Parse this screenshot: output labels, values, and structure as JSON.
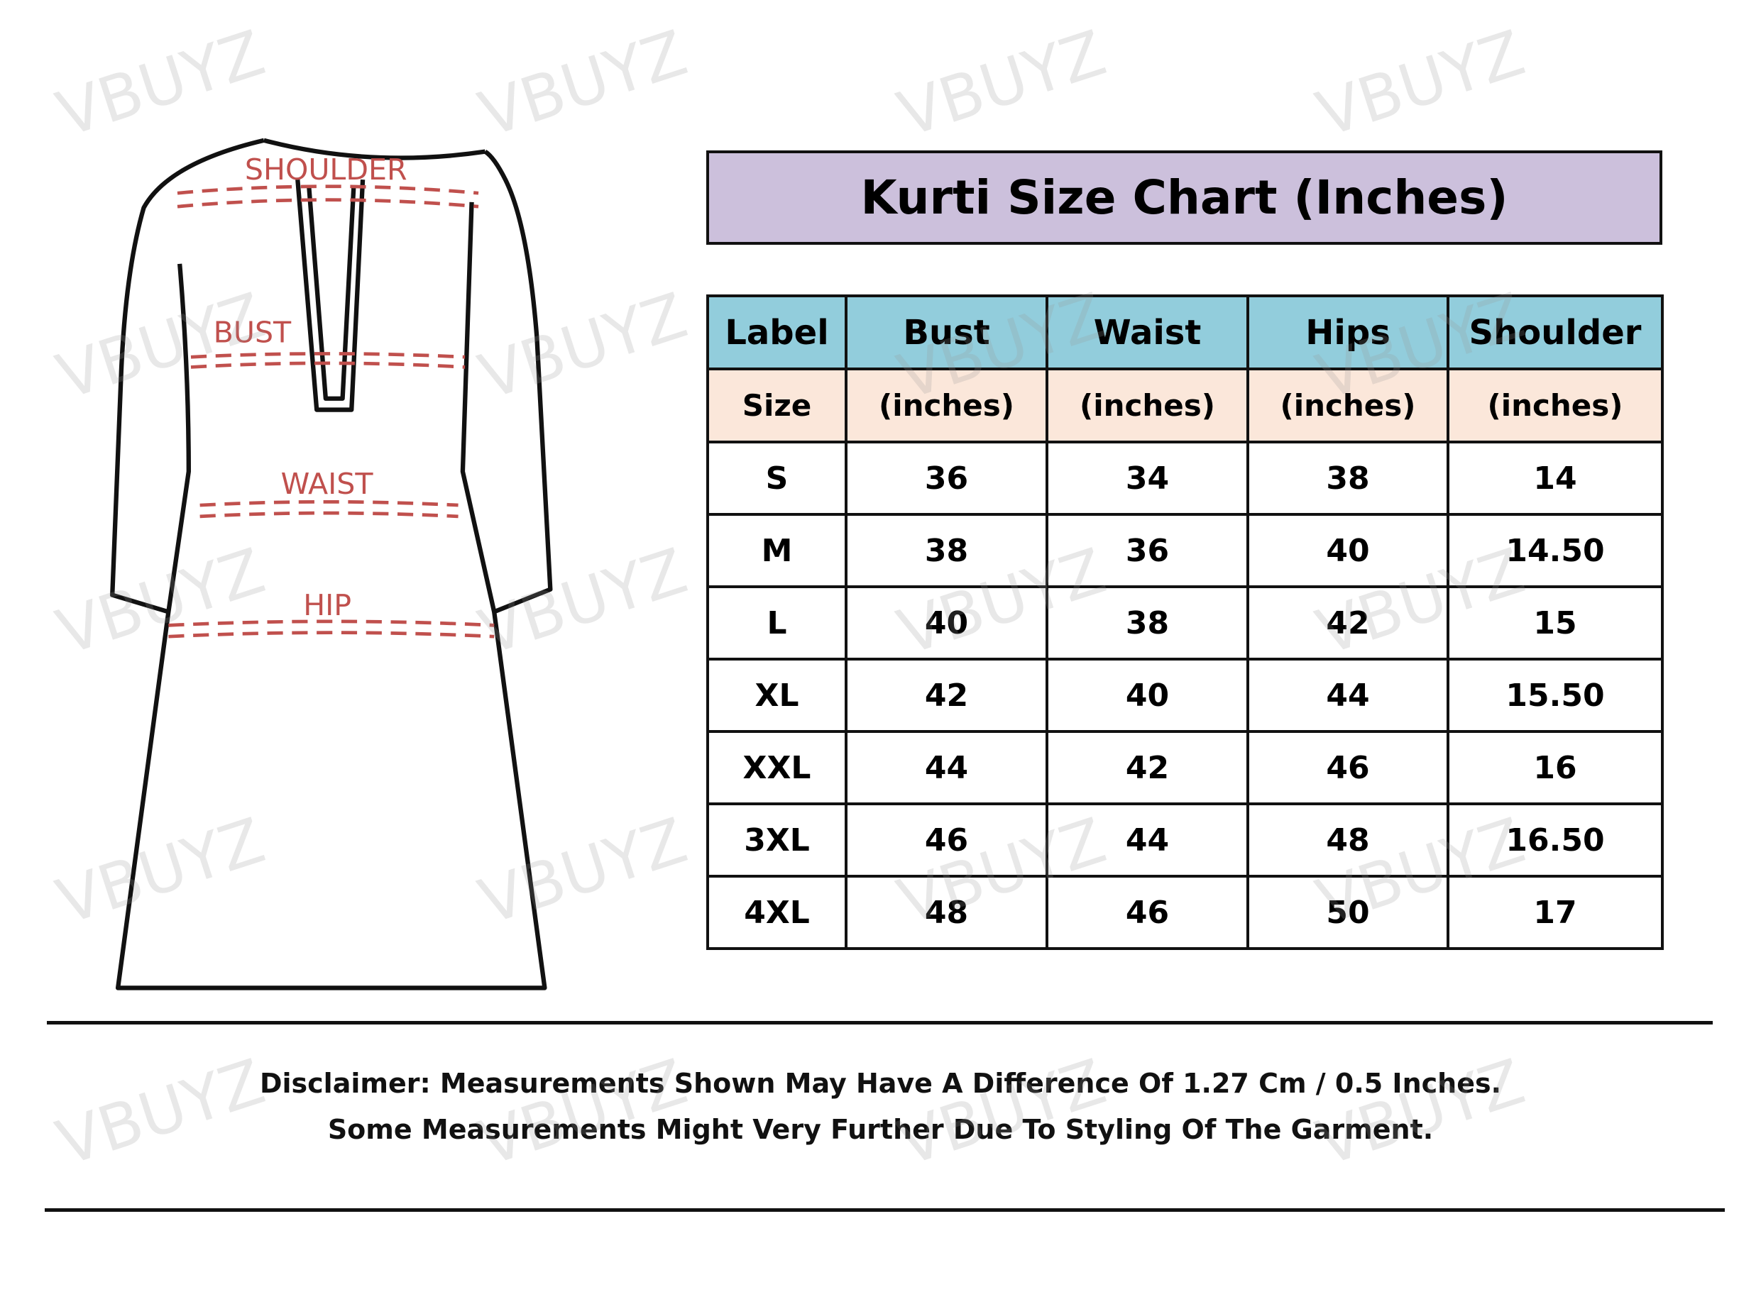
{
  "title": "Kurti Size Chart (Inches)",
  "diagram_labels": {
    "shoulder": "SHOULDER",
    "bust": "BUST",
    "waist": "WAIST",
    "hip": "HIP"
  },
  "table": {
    "headers": [
      "Label",
      "Bust",
      "Waist",
      "Hips",
      "Shoulder"
    ],
    "units": [
      "Size",
      "(inches)",
      "(inches)",
      "(inches)",
      "(inches)"
    ],
    "rows": [
      [
        "S",
        "36",
        "34",
        "38",
        "14"
      ],
      [
        "M",
        "38",
        "36",
        "40",
        "14.50"
      ],
      [
        "L",
        "40",
        "38",
        "42",
        "15"
      ],
      [
        "XL",
        "42",
        "40",
        "44",
        "15.50"
      ],
      [
        "XXL",
        "44",
        "42",
        "46",
        "16"
      ],
      [
        "3XL",
        "46",
        "44",
        "48",
        "16.50"
      ],
      [
        "4XL",
        "48",
        "46",
        "50",
        "17"
      ]
    ]
  },
  "disclaimer": {
    "line1": "Disclaimer: Measurements Shown May Have A Difference Of 1.27 Cm / 0.5 Inches.",
    "line2": "Some Measurements Might Very Further Due To Styling Of The Garment."
  },
  "watermark": "VBUYZ",
  "colors": {
    "title_bg": "#ccc0dc",
    "header_bg": "#92cddc",
    "units_bg": "#fbe7da",
    "measure_red": "#c0504d"
  }
}
